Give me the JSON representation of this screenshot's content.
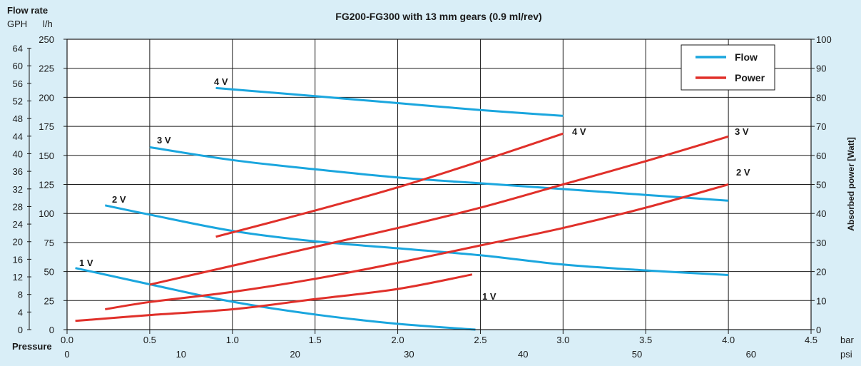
{
  "colors": {
    "background": "#d9eef7",
    "plot_bg": "#ffffff",
    "flow": "#1aa6de",
    "power": "#e0302a",
    "grid": "#1a1a1a"
  },
  "chart_data": {
    "type": "line",
    "title": "FG200-FG300 with 13  mm gears (0.9 ml/rev)",
    "left_axis_title": "Flow rate",
    "gph_unit": "GPH",
    "lh_unit": "l/h",
    "right_axis_title": "Absorbed power [Watt]",
    "x_axis_title": "Pressure",
    "bar_unit": "bar",
    "psi_unit": "psi",
    "xlim": [
      0,
      4.5
    ],
    "x_ticks": [
      0,
      0.5,
      1.0,
      1.5,
      2.0,
      2.5,
      3.0,
      3.5,
      4.0,
      4.5
    ],
    "x_tick_labels": [
      "0.0",
      "0.5",
      "1.0",
      "1.5",
      "2.0",
      "2.5",
      "3.0",
      "3.5",
      "4.0",
      "4.5"
    ],
    "psi_ticks": [
      0,
      10,
      20,
      30,
      40,
      50,
      60
    ],
    "lh_lim": [
      0,
      250
    ],
    "lh_ticks": [
      0,
      25,
      50,
      75,
      100,
      125,
      150,
      175,
      200,
      225,
      250
    ],
    "gph_ticks": [
      0,
      4,
      8,
      12,
      16,
      20,
      24,
      28,
      32,
      36,
      40,
      44,
      48,
      52,
      56,
      60,
      64
    ],
    "power_lim": [
      0,
      100
    ],
    "power_ticks": [
      0,
      10,
      20,
      30,
      40,
      50,
      60,
      70,
      80,
      90,
      100
    ],
    "grid": true,
    "legend": {
      "position": "top-right",
      "entries": [
        {
          "name": "Flow",
          "color": "#1aa6de"
        },
        {
          "name": "Power",
          "color": "#e0302a"
        }
      ]
    },
    "flow_series": [
      {
        "name": "1 V",
        "unit": "l/h",
        "points": [
          [
            0.05,
            53
          ],
          [
            0.5,
            39
          ],
          [
            1.0,
            24
          ],
          [
            1.5,
            13
          ],
          [
            2.0,
            5
          ],
          [
            2.47,
            0
          ]
        ]
      },
      {
        "name": "2 V",
        "unit": "l/h",
        "points": [
          [
            0.23,
            107
          ],
          [
            0.5,
            99
          ],
          [
            1.0,
            85
          ],
          [
            1.5,
            76
          ],
          [
            2.0,
            70
          ],
          [
            2.5,
            64
          ],
          [
            3.0,
            56
          ],
          [
            3.5,
            51
          ],
          [
            4.0,
            47
          ]
        ]
      },
      {
        "name": "3 V",
        "unit": "l/h",
        "points": [
          [
            0.5,
            157
          ],
          [
            1.0,
            146
          ],
          [
            1.5,
            138
          ],
          [
            2.0,
            131
          ],
          [
            2.5,
            126
          ],
          [
            3.0,
            121
          ],
          [
            3.5,
            116
          ],
          [
            4.0,
            111
          ]
        ]
      },
      {
        "name": "4 V",
        "unit": "l/h",
        "points": [
          [
            0.9,
            208
          ],
          [
            1.5,
            201
          ],
          [
            2.0,
            195
          ],
          [
            2.5,
            189
          ],
          [
            3.0,
            184
          ]
        ]
      }
    ],
    "power_series": [
      {
        "name": "1 V",
        "unit": "W",
        "points": [
          [
            0.05,
            3
          ],
          [
            0.5,
            5
          ],
          [
            1.0,
            7
          ],
          [
            1.5,
            10.5
          ],
          [
            2.0,
            14
          ],
          [
            2.45,
            19
          ]
        ]
      },
      {
        "name": "2 V",
        "unit": "W",
        "points": [
          [
            0.23,
            7
          ],
          [
            0.5,
            9.5
          ],
          [
            1.0,
            13
          ],
          [
            1.5,
            17.5
          ],
          [
            2.0,
            23
          ],
          [
            2.5,
            29
          ],
          [
            3.0,
            35
          ],
          [
            3.5,
            42
          ],
          [
            4.0,
            50
          ]
        ]
      },
      {
        "name": "3 V",
        "unit": "W",
        "points": [
          [
            0.5,
            15.5
          ],
          [
            1.0,
            22
          ],
          [
            1.5,
            28.5
          ],
          [
            2.0,
            35
          ],
          [
            2.5,
            42
          ],
          [
            3.0,
            50
          ],
          [
            3.5,
            58
          ],
          [
            4.0,
            66.5
          ]
        ]
      },
      {
        "name": "4 V",
        "unit": "W",
        "points": [
          [
            0.9,
            32
          ],
          [
            1.5,
            41
          ],
          [
            2.0,
            49
          ],
          [
            2.5,
            58
          ],
          [
            3.0,
            67.5
          ]
        ]
      }
    ],
    "annotations": [
      "1 V",
      "2 V",
      "3 V",
      "4 V",
      "1 V",
      "2 V",
      "3 V",
      "4 V"
    ]
  }
}
